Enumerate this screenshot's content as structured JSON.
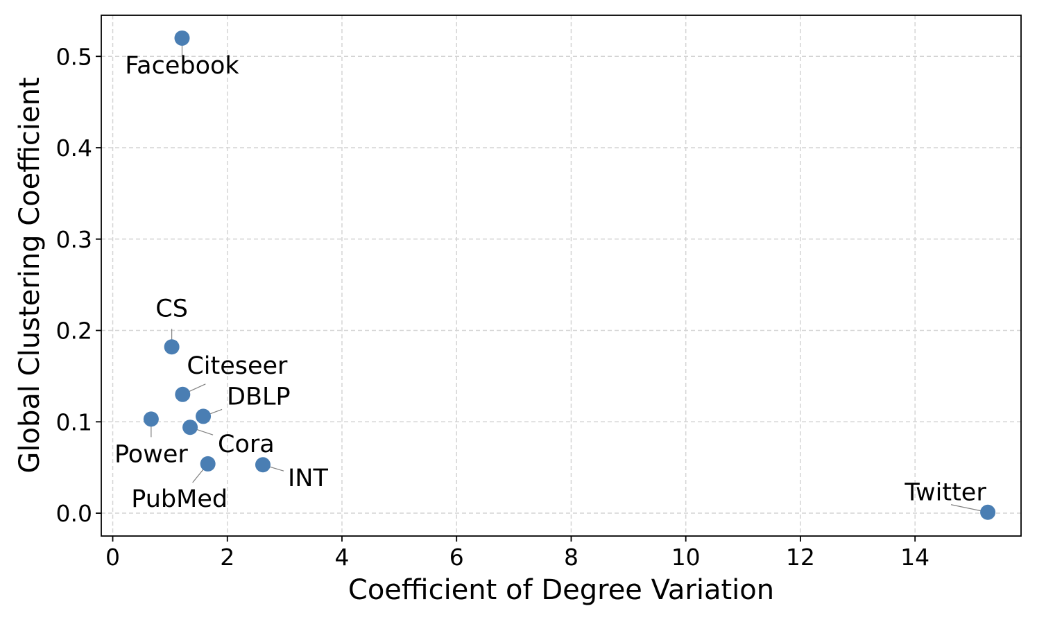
{
  "chart_data": {
    "type": "scatter",
    "title": "",
    "xlabel": "Coefficient of Degree Variation",
    "ylabel": "Global Clustering Coefficient",
    "xlim": [
      -0.2,
      15.85
    ],
    "ylim": [
      -0.025,
      0.545
    ],
    "xticks": [
      0,
      2,
      4,
      6,
      8,
      10,
      12,
      14
    ],
    "xtick_labels": [
      "0",
      "2",
      "4",
      "6",
      "8",
      "10",
      "12",
      "14"
    ],
    "yticks": [
      0.0,
      0.1,
      0.2,
      0.3,
      0.4,
      0.5
    ],
    "ytick_labels": [
      "0.0",
      "0.1",
      "0.2",
      "0.3",
      "0.4",
      "0.5"
    ],
    "grid": true,
    "marker_color": "#4a7eb3",
    "points": [
      {
        "label": "Facebook",
        "x": 1.21,
        "y": 0.52
      },
      {
        "label": "CS",
        "x": 1.03,
        "y": 0.182
      },
      {
        "label": "Citeseer",
        "x": 1.22,
        "y": 0.13
      },
      {
        "label": "DBLP",
        "x": 1.58,
        "y": 0.106
      },
      {
        "label": "Power",
        "x": 0.67,
        "y": 0.103
      },
      {
        "label": "Cora",
        "x": 1.35,
        "y": 0.094
      },
      {
        "label": "INT",
        "x": 2.62,
        "y": 0.053
      },
      {
        "label": "PubMed",
        "x": 1.66,
        "y": 0.054
      },
      {
        "label": "Twitter",
        "x": 15.27,
        "y": 0.001
      }
    ]
  }
}
